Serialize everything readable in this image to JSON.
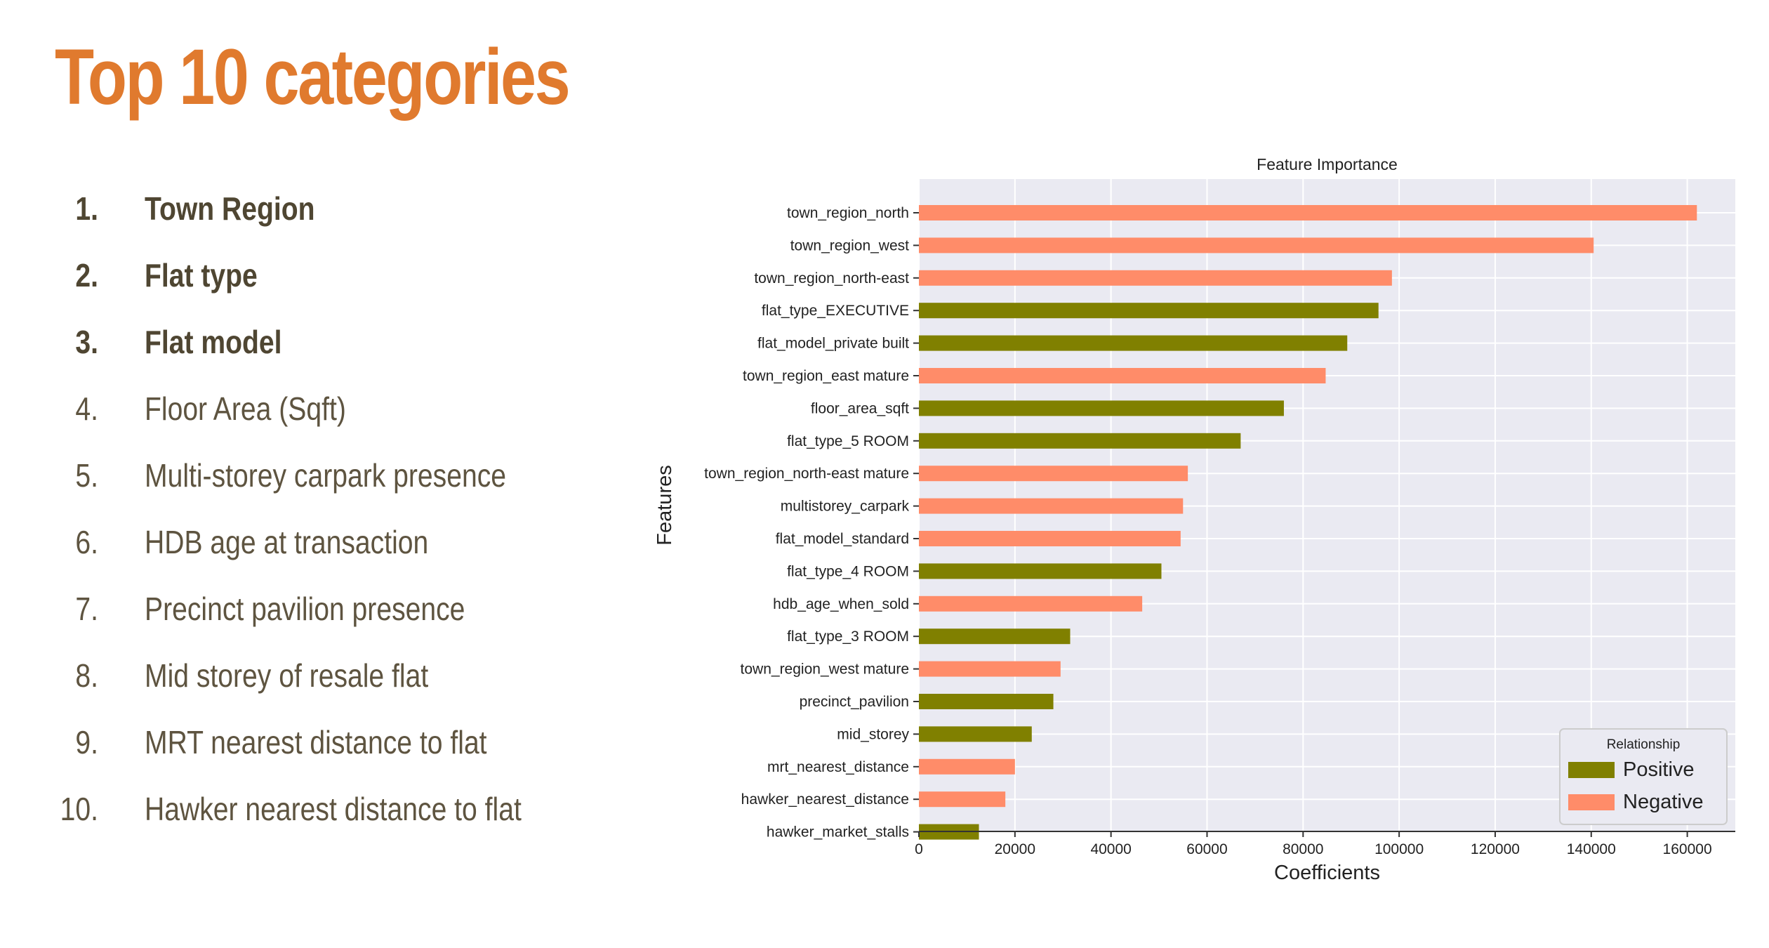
{
  "slide": {
    "title": "Top 10 categories"
  },
  "categories": [
    {
      "num": "1.",
      "label": "Town Region",
      "bold": true
    },
    {
      "num": "2.",
      "label": "Flat type",
      "bold": true
    },
    {
      "num": "3.",
      "label": "Flat model",
      "bold": true
    },
    {
      "num": "4.",
      "label": "Floor Area (Sqft)",
      "bold": false
    },
    {
      "num": "5.",
      "label": "Multi-storey carpark presence",
      "bold": false
    },
    {
      "num": "6.",
      "label": "HDB age at transaction",
      "bold": false
    },
    {
      "num": "7.",
      "label": "Precinct pavilion presence",
      "bold": false
    },
    {
      "num": "8.",
      "label": "Mid storey of resale flat",
      "bold": false
    },
    {
      "num": "9.",
      "label": "MRT nearest distance to flat",
      "bold": false
    },
    {
      "num": "10.",
      "label": "Hawker nearest distance to flat",
      "bold": false
    }
  ],
  "colors": {
    "title": "#e07a2e",
    "positive": "#808000",
    "negative": "#ff8c69",
    "plot_bg": "#eaeaf2"
  },
  "chart_data": {
    "type": "bar",
    "orientation": "horizontal",
    "title": "Feature Importance",
    "xlabel": "Coefficients",
    "ylabel": "Features",
    "xlim": [
      0,
      170000
    ],
    "xticks": [
      0,
      20000,
      40000,
      60000,
      80000,
      100000,
      120000,
      140000,
      160000
    ],
    "grid": true,
    "legend": {
      "title": "Relationship",
      "placement": "bottom-right",
      "entries": [
        "Positive",
        "Negative"
      ]
    },
    "categories": [
      "town_region_north",
      "town_region_west",
      "town_region_north-east",
      "flat_type_EXECUTIVE",
      "flat_model_private built",
      "town_region_east mature",
      "floor_area_sqft",
      "flat_type_5 ROOM",
      "town_region_north-east mature",
      "multistorey_carpark",
      "flat_model_standard",
      "flat_type_4 ROOM",
      "hdb_age_when_sold",
      "flat_type_3 ROOM",
      "town_region_west mature",
      "precinct_pavilion",
      "mid_storey",
      "mrt_nearest_distance",
      "hawker_nearest_distance",
      "hawker_market_stalls"
    ],
    "values": [
      162000,
      140500,
      98500,
      95700,
      89200,
      84700,
      76000,
      67000,
      56000,
      55000,
      54500,
      50500,
      46500,
      31500,
      29500,
      28000,
      23500,
      20000,
      18000,
      12500
    ],
    "relationship": [
      "Negative",
      "Negative",
      "Negative",
      "Positive",
      "Positive",
      "Negative",
      "Positive",
      "Positive",
      "Negative",
      "Negative",
      "Negative",
      "Positive",
      "Negative",
      "Positive",
      "Negative",
      "Positive",
      "Positive",
      "Negative",
      "Negative",
      "Positive"
    ]
  }
}
